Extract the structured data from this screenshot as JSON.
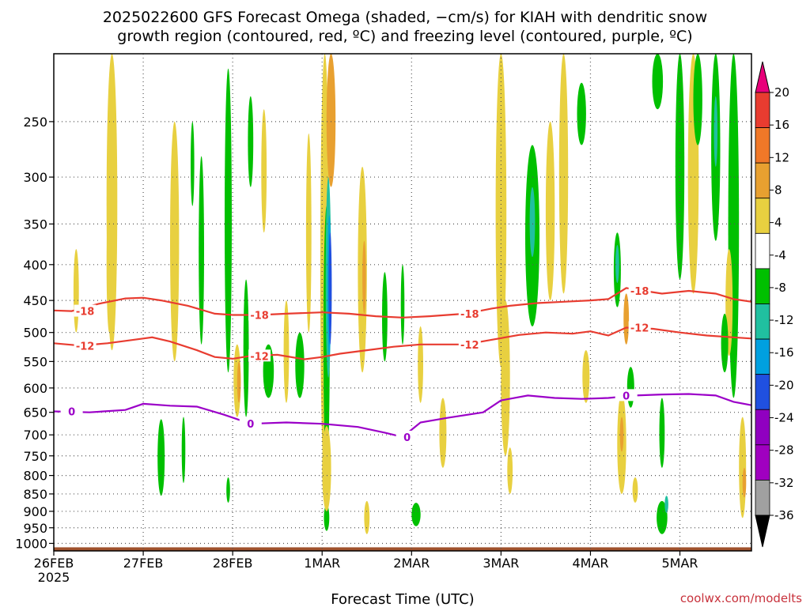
{
  "chart_data": {
    "type": "heatmap",
    "title_line1": "2025022600 GFS Forecast Omega (shaded, −cm/s) for KIAH with dendritic snow",
    "title_line2": "growth region (contoured, red, ºC) and freezing level (contoured, purple, ºC)",
    "xlabel": "Forecast Time (UTC)",
    "x_ticks": [
      "26FEB",
      "27FEB",
      "28FEB",
      "1MAR",
      "2MAR",
      "3MAR",
      "4MAR",
      "5MAR"
    ],
    "x_year": "2025",
    "xlim_days": [
      0,
      7.8
    ],
    "y_ticks": [
      250,
      300,
      350,
      400,
      450,
      500,
      550,
      600,
      650,
      700,
      750,
      800,
      850,
      900,
      950,
      1000
    ],
    "ylim_hpa": [
      1025,
      200
    ],
    "grid": "dotted",
    "colorbar": {
      "labels": [
        20,
        16,
        12,
        8,
        4,
        -4,
        -8,
        -12,
        -16,
        -20,
        -24,
        -28,
        -32,
        -36
      ],
      "colors": [
        "#e8007a",
        "#e83c30",
        "#f07828",
        "#e8a030",
        "#e8d040",
        "#ffffff",
        "#00c000",
        "#20c0a0",
        "#00a0e0",
        "#2050e0",
        "#9000c0",
        "#a000c0",
        "#a0a0a0",
        "#000000"
      ]
    },
    "contours": [
      {
        "label": "-18",
        "color": "#e83c30",
        "points": [
          [
            0,
            465
          ],
          [
            0.2,
            466
          ],
          [
            0.5,
            455
          ],
          [
            0.8,
            447
          ],
          [
            1.0,
            446
          ],
          [
            1.2,
            450
          ],
          [
            1.5,
            458
          ],
          [
            1.8,
            470
          ],
          [
            2.0,
            472
          ],
          [
            2.3,
            472
          ],
          [
            2.6,
            470
          ],
          [
            3.0,
            468
          ],
          [
            3.3,
            470
          ],
          [
            3.6,
            474
          ],
          [
            3.9,
            476
          ],
          [
            4.2,
            474
          ],
          [
            4.6,
            470
          ],
          [
            4.9,
            462
          ],
          [
            5.1,
            458
          ],
          [
            5.4,
            454
          ],
          [
            5.7,
            452
          ],
          [
            6.0,
            450
          ],
          [
            6.2,
            448
          ],
          [
            6.4,
            432
          ],
          [
            6.6,
            436
          ],
          [
            6.8,
            440
          ],
          [
            7.1,
            436
          ],
          [
            7.4,
            440
          ],
          [
            7.6,
            448
          ],
          [
            7.8,
            452
          ]
        ]
      },
      {
        "label": "-12",
        "color": "#e83c30",
        "points": [
          [
            0,
            518
          ],
          [
            0.3,
            522
          ],
          [
            0.6,
            518
          ],
          [
            0.9,
            512
          ],
          [
            1.1,
            508
          ],
          [
            1.3,
            515
          ],
          [
            1.6,
            530
          ],
          [
            1.8,
            542
          ],
          [
            2.0,
            545
          ],
          [
            2.2,
            540
          ],
          [
            2.5,
            538
          ],
          [
            2.8,
            546
          ],
          [
            3.0,
            542
          ],
          [
            3.2,
            536
          ],
          [
            3.5,
            530
          ],
          [
            3.8,
            524
          ],
          [
            4.1,
            520
          ],
          [
            4.4,
            520
          ],
          [
            4.6,
            520
          ],
          [
            4.9,
            512
          ],
          [
            5.2,
            504
          ],
          [
            5.5,
            500
          ],
          [
            5.8,
            502
          ],
          [
            6.0,
            498
          ],
          [
            6.2,
            505
          ],
          [
            6.4,
            492
          ],
          [
            6.7,
            494
          ],
          [
            7.0,
            500
          ],
          [
            7.3,
            505
          ],
          [
            7.6,
            508
          ],
          [
            7.8,
            510
          ]
        ]
      },
      {
        "label": "0",
        "color": "#9b00c8",
        "points": [
          [
            0,
            648
          ],
          [
            0.4,
            650
          ],
          [
            0.8,
            645
          ],
          [
            1.0,
            632
          ],
          [
            1.3,
            636
          ],
          [
            1.6,
            638
          ],
          [
            1.9,
            655
          ],
          [
            2.2,
            675
          ],
          [
            2.6,
            672
          ],
          [
            3.0,
            675
          ],
          [
            3.4,
            682
          ],
          [
            3.7,
            695
          ],
          [
            3.9,
            705
          ],
          [
            4.1,
            672
          ],
          [
            4.4,
            662
          ],
          [
            4.8,
            650
          ],
          [
            5.0,
            625
          ],
          [
            5.3,
            615
          ],
          [
            5.6,
            620
          ],
          [
            5.9,
            622
          ],
          [
            6.2,
            620
          ],
          [
            6.5,
            615
          ],
          [
            6.8,
            613
          ],
          [
            7.1,
            612
          ],
          [
            7.4,
            615
          ],
          [
            7.6,
            628
          ],
          [
            7.8,
            635
          ]
        ]
      }
    ]
  },
  "credit": "coolwx.com/modelts"
}
